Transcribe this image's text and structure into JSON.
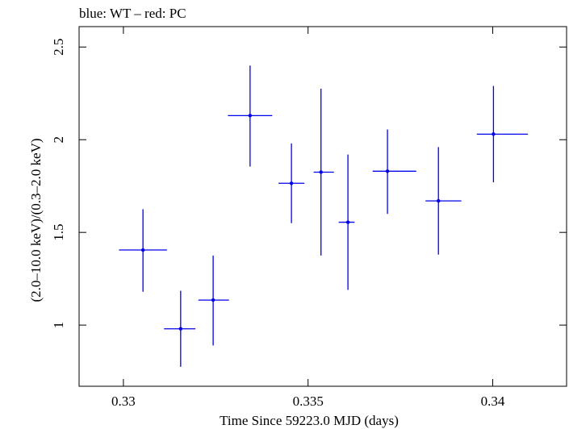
{
  "chart_data": {
    "type": "scatter",
    "title": "blue: WT – red: PC",
    "xlabel": "Time Since 59223.0 MJD (days)",
    "ylabel": "(2.0–10.0 keV)/(0.3–2.0 keV)",
    "xlim": [
      0.3288,
      0.342
    ],
    "ylim": [
      0.67,
      2.61
    ],
    "x_ticks": [
      {
        "value": 0.33,
        "label": "0.33"
      },
      {
        "value": 0.335,
        "label": "0.335"
      },
      {
        "value": 0.34,
        "label": "0.34"
      }
    ],
    "y_ticks": [
      {
        "value": 1,
        "label": "1"
      },
      {
        "value": 1.5,
        "label": "1.5"
      },
      {
        "value": 2,
        "label": "2"
      },
      {
        "value": 2.5,
        "label": "2.5"
      }
    ],
    "grid": false,
    "series": [
      {
        "color": "#0000ee",
        "points": [
          {
            "x": 0.33053,
            "y": 1.405,
            "xerr": [
              0.00065,
              0.00065
            ],
            "yerr": [
              0.225,
              0.22
            ]
          },
          {
            "x": 0.33155,
            "y": 0.98,
            "xerr": [
              0.00045,
              0.0004
            ],
            "yerr": [
              0.205,
              0.205
            ]
          },
          {
            "x": 0.33243,
            "y": 1.135,
            "xerr": [
              0.0004,
              0.00043
            ],
            "yerr": [
              0.245,
              0.24
            ]
          },
          {
            "x": 0.33343,
            "y": 2.13,
            "xerr": [
              0.0006,
              0.0006
            ],
            "yerr": [
              0.275,
              0.27
            ]
          },
          {
            "x": 0.33455,
            "y": 1.765,
            "xerr": [
              0.00035,
              0.00035
            ],
            "yerr": [
              0.215,
              0.215
            ]
          },
          {
            "x": 0.33535,
            "y": 1.825,
            "xerr": [
              0.0002,
              0.00035
            ],
            "yerr": [
              0.45,
              0.45
            ]
          },
          {
            "x": 0.33608,
            "y": 1.555,
            "xerr": [
              0.00025,
              0.00018
            ],
            "yerr": [
              0.365,
              0.365
            ]
          },
          {
            "x": 0.33715,
            "y": 1.83,
            "xerr": [
              0.0004,
              0.00078
            ],
            "yerr": [
              0.23,
              0.225
            ]
          },
          {
            "x": 0.33853,
            "y": 1.67,
            "xerr": [
              0.00035,
              0.00062
            ],
            "yerr": [
              0.29,
              0.29
            ]
          },
          {
            "x": 0.34002,
            "y": 2.03,
            "xerr": [
              0.00045,
              0.00093
            ],
            "yerr": [
              0.26,
              0.26
            ]
          }
        ]
      }
    ]
  }
}
